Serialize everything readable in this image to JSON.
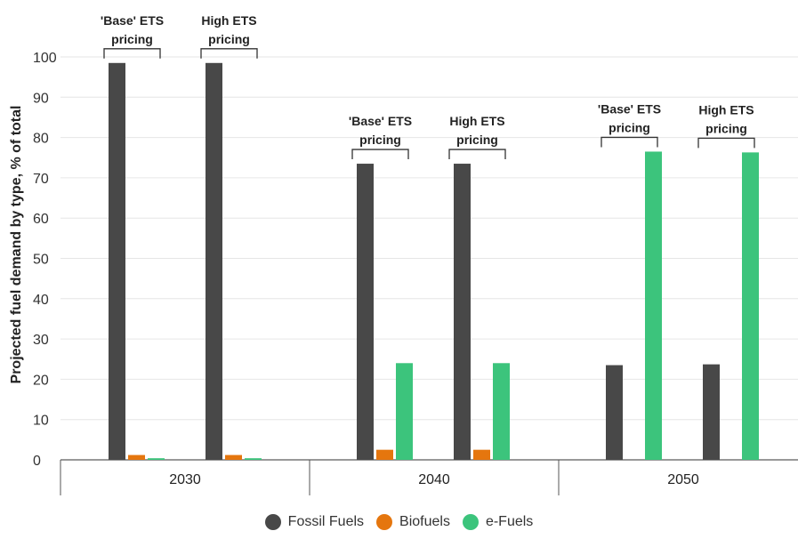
{
  "chart_data": {
    "type": "bar",
    "ylabel": "Projected fuel demand by type, % of total",
    "ylim": [
      0,
      100
    ],
    "yticks": [
      0,
      10,
      20,
      30,
      40,
      50,
      60,
      70,
      80,
      90,
      100
    ],
    "grid": true,
    "legend_position": "bottom-center",
    "categories": [
      "2030",
      "2040",
      "2050"
    ],
    "scenarios": [
      "'Base' ETS pricing",
      "High ETS pricing"
    ],
    "series": [
      {
        "name": "Fossil Fuels",
        "color": "#484848",
        "values": [
          [
            98.5,
            98.5
          ],
          [
            73.5,
            73.5
          ],
          [
            23.5,
            23.7
          ]
        ]
      },
      {
        "name": "Biofuels",
        "color": "#e5760e",
        "values": [
          [
            1.2,
            1.2
          ],
          [
            2.5,
            2.5
          ],
          [
            0,
            0
          ]
        ]
      },
      {
        "name": "e-Fuels",
        "color": "#3cc47c",
        "values": [
          [
            0.4,
            0.4
          ],
          [
            24.0,
            24.0
          ],
          [
            76.5,
            76.3
          ]
        ]
      }
    ]
  }
}
